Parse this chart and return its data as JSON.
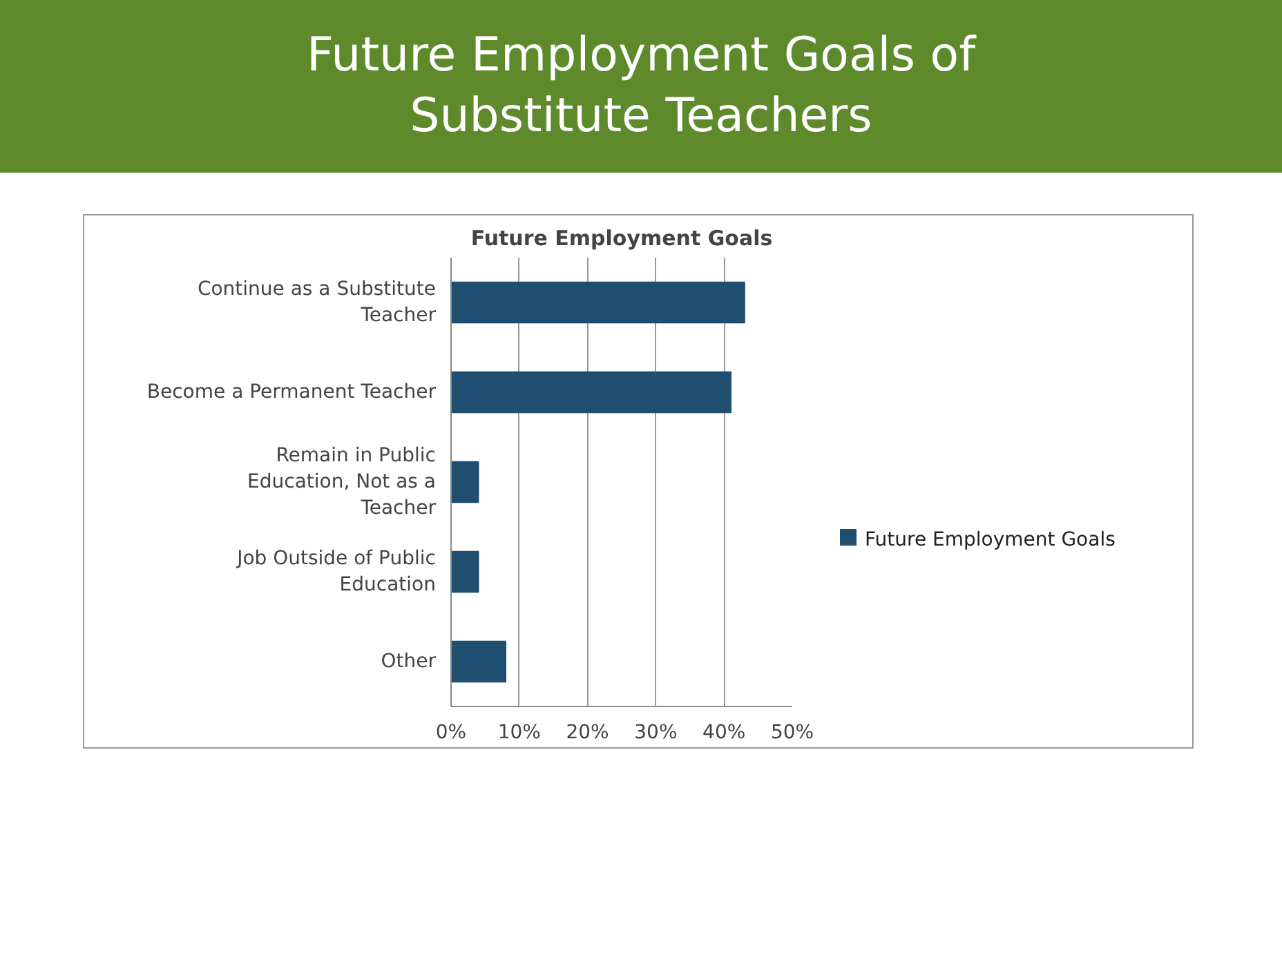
{
  "chart_data": {
    "type": "bar",
    "orientation": "horizontal",
    "title": "Future Employment Goals of Substitute Teachers",
    "subtitle": "Future Employment Goals",
    "categories": [
      "Continue as a Substitute Teacher",
      "Become a Permanent Teacher",
      "Remain in Public Education, Not as a Teacher",
      "Job Outside of Public Education",
      "Other"
    ],
    "series": [
      {
        "name": "Future Employment Goals",
        "color": "#1f4e70",
        "values": [
          43,
          41,
          4,
          4,
          8
        ]
      }
    ],
    "xlim": [
      0,
      50
    ],
    "xticks": [
      {
        "value": 0,
        "label": "0%"
      },
      {
        "value": 10,
        "label": "10%"
      },
      {
        "value": 20,
        "label": "20%"
      },
      {
        "value": 30,
        "label": "30%"
      },
      {
        "value": 40,
        "label": "40%"
      },
      {
        "value": 50,
        "label": "50%"
      }
    ],
    "grid": "x",
    "legend": "right"
  }
}
